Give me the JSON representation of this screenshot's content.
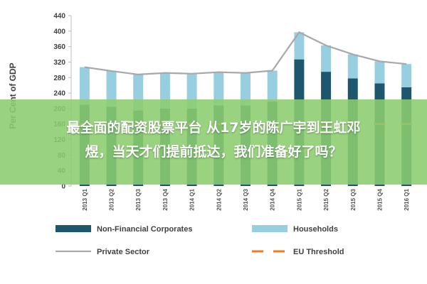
{
  "chart_data": {
    "type": "bar",
    "stacked": true,
    "ylabel": "Per Cent of GDP",
    "ylim": [
      0,
      440
    ],
    "yticks": [
      0,
      40,
      80,
      120,
      160,
      200,
      240,
      280,
      320,
      360,
      400,
      440
    ],
    "categories": [
      "2013 Q1",
      "2013 Q2",
      "2013 Q3",
      "2013 Q4",
      "2014 Q1",
      "2014 Q2",
      "2014 Q3",
      "2014 Q4",
      "2015 Q1",
      "2015 Q2",
      "2015 Q3",
      "2015 Q4",
      "2016 Q1"
    ],
    "series": [
      {
        "name": "Non-Financial Corporates",
        "kind": "bar",
        "color": "#1e5670",
        "values": [
          210,
          205,
          195,
          200,
          200,
          208,
          208,
          218,
          327,
          295,
          278,
          265,
          255
        ]
      },
      {
        "name": "Households",
        "kind": "bar",
        "color": "#97cfe0",
        "values": [
          97,
          92,
          93,
          92,
          90,
          86,
          84,
          80,
          70,
          68,
          62,
          57,
          60
        ]
      },
      {
        "name": "Private Sector",
        "kind": "line",
        "color": "#a8a8a8",
        "values": [
          307,
          297,
          288,
          292,
          290,
          294,
          292,
          298,
          397,
          363,
          340,
          322,
          315
        ]
      },
      {
        "name": "EU Threshold",
        "kind": "dashed-line",
        "color": "#f07a22",
        "values": [
          160,
          160,
          160,
          160,
          160,
          160,
          160,
          160,
          160,
          160,
          160,
          160,
          160
        ]
      }
    ],
    "legend_position": "bottom",
    "grid": false
  },
  "overlay": {
    "line1": "最全面的配资股票平台 从17岁的陈广宇到王虹邓",
    "line2": "煜，当天才们提前抵达，我们准备好了吗？"
  }
}
